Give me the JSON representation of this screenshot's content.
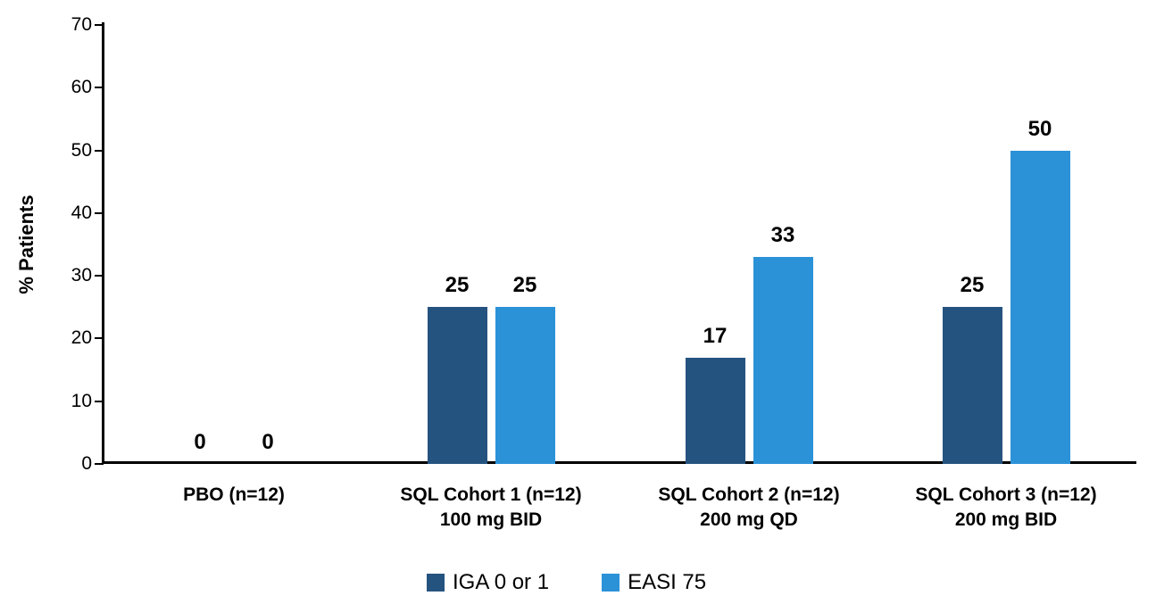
{
  "chart_data": {
    "type": "bar",
    "title": "",
    "xlabel": "",
    "ylabel": "% Patients",
    "ylim": [
      0,
      70
    ],
    "yticks": [
      0,
      10,
      20,
      30,
      40,
      50,
      60,
      70
    ],
    "grid": false,
    "legend_position": "bottom",
    "categories": [
      {
        "line1": "PBO (n=12)",
        "line2": ""
      },
      {
        "line1": "SQL Cohort 1 (n=12)",
        "line2": "100 mg BID"
      },
      {
        "line1": "SQL Cohort 2 (n=12)",
        "line2": "200 mg QD"
      },
      {
        "line1": "SQL Cohort 3 (n=12)",
        "line2": "200 mg BID"
      }
    ],
    "series": [
      {
        "name": "IGA 0 or 1",
        "color": "#255380",
        "values": [
          0,
          25,
          17,
          25
        ],
        "data_labels": [
          "0",
          "25",
          "17",
          "25"
        ]
      },
      {
        "name": "EASI 75",
        "color": "#2C92D8",
        "values": [
          0,
          25,
          33,
          50
        ],
        "data_labels": [
          "0",
          "25",
          "33",
          "50"
        ]
      }
    ],
    "colors": {
      "axis": "#000000",
      "text": "#000000",
      "background": "#FFFFFF"
    }
  }
}
